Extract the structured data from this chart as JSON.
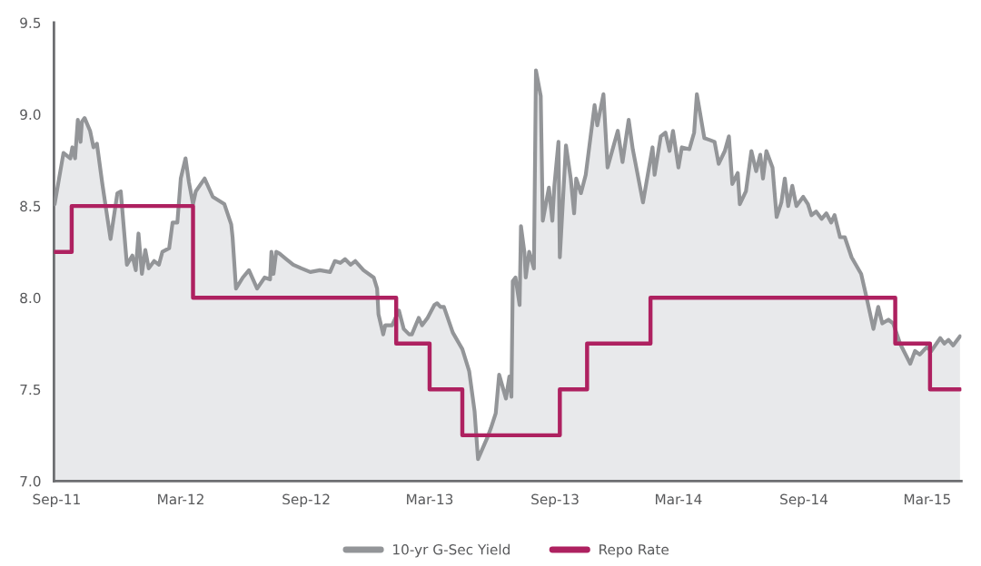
{
  "chart_data": {
    "type": "area",
    "xlim": [
      "2011-08-28",
      "2015-04-20"
    ],
    "xticks": [
      {
        "value": "2011-09-01",
        "label": "Sep-11"
      },
      {
        "value": "2012-03-01",
        "label": "Mar-12"
      },
      {
        "value": "2012-09-01",
        "label": "Sep-12"
      },
      {
        "value": "2013-03-01",
        "label": "Mar-13"
      },
      {
        "value": "2013-09-01",
        "label": "Sep-13"
      },
      {
        "value": "2014-03-01",
        "label": "Mar-14"
      },
      {
        "value": "2014-09-01",
        "label": "Sep-14"
      },
      {
        "value": "2015-03-01",
        "label": "Mar-15"
      }
    ],
    "ylim": [
      7.0,
      9.5
    ],
    "yticks": [
      {
        "value": 7.0,
        "label": "7.0"
      },
      {
        "value": 7.5,
        "label": "7.5"
      },
      {
        "value": 8.0,
        "label": "8.0"
      },
      {
        "value": 8.5,
        "label": "8.5"
      },
      {
        "value": 9.0,
        "label": "9.0"
      },
      {
        "value": 9.5,
        "label": "9.5"
      }
    ],
    "grid": false,
    "legend": "bottom",
    "marker": "none",
    "series": [
      {
        "name": "10-yr G-Sec Yield",
        "color": "#939598",
        "x": [
          "2011-08-29",
          "2011-09-11",
          "2011-09-21",
          "2011-09-24",
          "2011-09-28",
          "2011-10-02",
          "2011-10-06",
          "2011-10-08",
          "2011-10-12",
          "2011-10-20",
          "2011-10-25",
          "2011-10-30",
          "2011-11-07",
          "2011-11-19",
          "2011-11-29",
          "2011-12-04",
          "2011-12-13",
          "2011-12-21",
          "2011-12-26",
          "2011-12-30",
          "2012-01-04",
          "2012-01-09",
          "2012-01-14",
          "2012-01-22",
          "2012-01-29",
          "2012-02-03",
          "2012-02-13",
          "2012-02-18",
          "2012-02-25",
          "2012-03-01",
          "2012-03-08",
          "2012-03-13",
          "2012-03-19",
          "2012-03-23",
          "2012-04-05",
          "2012-04-17",
          "2012-05-04",
          "2012-05-14",
          "2012-05-16",
          "2012-05-21",
          "2012-05-31",
          "2012-06-09",
          "2012-06-21",
          "2012-07-02",
          "2012-07-10",
          "2012-07-12",
          "2012-07-15",
          "2012-07-19",
          "2012-07-24",
          "2012-08-03",
          "2012-08-13",
          "2012-08-25",
          "2012-09-07",
          "2012-09-21",
          "2012-10-06",
          "2012-10-13",
          "2012-10-21",
          "2012-10-28",
          "2012-11-05",
          "2012-11-12",
          "2012-11-24",
          "2012-12-09",
          "2012-12-14",
          "2012-12-16",
          "2012-12-23",
          "2012-12-26",
          "2013-01-05",
          "2013-01-15",
          "2013-01-22",
          "2013-01-30",
          "2013-02-03",
          "2013-02-13",
          "2013-02-18",
          "2013-02-26",
          "2013-03-08",
          "2013-03-12",
          "2013-03-17",
          "2013-03-22",
          "2013-04-04",
          "2013-04-18",
          "2013-04-28",
          "2013-05-06",
          "2013-05-11",
          "2013-05-25",
          "2013-05-30",
          "2013-06-06",
          "2013-06-11",
          "2013-06-21",
          "2013-06-26",
          "2013-06-29",
          "2013-07-01",
          "2013-07-05",
          "2013-07-11",
          "2013-07-13",
          "2013-07-18",
          "2013-07-20",
          "2013-07-25",
          "2013-08-01",
          "2013-08-04",
          "2013-08-11",
          "2013-08-14",
          "2013-08-23",
          "2013-08-28",
          "2013-08-31",
          "2013-09-06",
          "2013-09-08",
          "2013-09-17",
          "2013-09-24",
          "2013-09-29",
          "2013-10-02",
          "2013-10-09",
          "2013-10-16",
          "2013-10-29",
          "2013-11-02",
          "2013-11-11",
          "2013-11-17",
          "2013-12-02",
          "2013-12-09",
          "2013-12-18",
          "2013-12-24",
          "2014-01-08",
          "2014-01-22",
          "2014-01-25",
          "2014-02-03",
          "2014-02-10",
          "2014-02-16",
          "2014-02-21",
          "2014-03-01",
          "2014-03-06",
          "2014-03-17",
          "2014-03-24",
          "2014-03-28",
          "2014-04-08",
          "2014-04-16",
          "2014-04-23",
          "2014-04-29",
          "2014-05-08",
          "2014-05-14",
          "2014-05-19",
          "2014-05-27",
          "2014-05-30",
          "2014-06-08",
          "2014-06-16",
          "2014-06-23",
          "2014-06-29",
          "2014-07-03",
          "2014-07-08",
          "2014-07-17",
          "2014-07-23",
          "2014-07-30",
          "2014-08-04",
          "2014-08-09",
          "2014-08-15",
          "2014-08-21",
          "2014-08-31",
          "2014-09-07",
          "2014-09-12",
          "2014-09-19",
          "2014-09-27",
          "2014-10-04",
          "2014-10-11",
          "2014-10-16",
          "2014-10-24",
          "2014-10-31",
          "2014-11-10",
          "2014-11-24",
          "2014-12-02",
          "2014-12-12",
          "2014-12-19",
          "2014-12-25",
          "2015-01-03",
          "2015-01-10",
          "2015-01-20",
          "2015-02-04",
          "2015-02-11",
          "2015-02-18",
          "2015-02-28",
          "2015-03-07",
          "2015-03-20",
          "2015-03-26",
          "2015-04-01",
          "2015-04-08",
          "2015-04-18"
        ],
        "values": [
          8.51,
          8.79,
          8.76,
          8.82,
          8.76,
          8.97,
          8.85,
          8.96,
          8.98,
          8.91,
          8.82,
          8.84,
          8.62,
          8.32,
          8.57,
          8.58,
          8.18,
          8.23,
          8.15,
          8.35,
          8.13,
          8.26,
          8.16,
          8.2,
          8.18,
          8.25,
          8.27,
          8.41,
          8.41,
          8.65,
          8.76,
          8.63,
          8.51,
          8.58,
          8.65,
          8.55,
          8.51,
          8.4,
          8.33,
          8.05,
          8.11,
          8.15,
          8.05,
          8.11,
          8.1,
          8.25,
          8.13,
          8.25,
          8.24,
          8.21,
          8.18,
          8.16,
          8.14,
          8.15,
          8.14,
          8.2,
          8.19,
          8.21,
          8.18,
          8.2,
          8.15,
          8.11,
          8.05,
          7.91,
          7.8,
          7.85,
          7.85,
          7.93,
          7.83,
          7.8,
          7.8,
          7.89,
          7.85,
          7.89,
          7.96,
          7.97,
          7.95,
          7.95,
          7.81,
          7.72,
          7.6,
          7.38,
          7.12,
          7.24,
          7.29,
          7.37,
          7.58,
          7.45,
          7.57,
          7.46,
          8.09,
          8.11,
          7.96,
          8.39,
          8.25,
          8.11,
          8.25,
          8.16,
          9.24,
          9.1,
          8.42,
          8.6,
          8.42,
          8.61,
          8.85,
          8.22,
          8.83,
          8.65,
          8.46,
          8.65,
          8.57,
          8.67,
          9.05,
          8.94,
          9.11,
          8.71,
          8.91,
          8.74,
          8.97,
          8.81,
          8.52,
          8.82,
          8.67,
          8.88,
          8.9,
          8.8,
          8.91,
          8.71,
          8.82,
          8.81,
          8.9,
          9.11,
          8.87,
          8.86,
          8.85,
          8.73,
          8.8,
          8.88,
          8.62,
          8.68,
          8.51,
          8.58,
          8.8,
          8.69,
          8.78,
          8.65,
          8.8,
          8.71,
          8.44,
          8.52,
          8.65,
          8.5,
          8.61,
          8.5,
          8.55,
          8.51,
          8.45,
          8.47,
          8.43,
          8.46,
          8.41,
          8.45,
          8.33,
          8.33,
          8.22,
          8.13,
          8.0,
          7.83,
          7.95,
          7.86,
          7.88,
          7.86,
          7.75,
          7.64,
          7.71,
          7.69,
          7.73,
          7.71,
          7.78,
          7.75,
          7.77,
          7.74,
          7.79
        ]
      },
      {
        "name": "Repo Rate",
        "type": "step",
        "color": "#ae2160",
        "x": [
          "2011-08-29",
          "2011-09-23",
          "2012-03-19",
          "2013-01-11",
          "2013-03-01",
          "2013-04-18",
          "2013-09-08",
          "2013-10-18",
          "2014-01-19",
          "2015-01-13",
          "2015-03-05",
          "2015-04-18"
        ],
        "values": [
          8.25,
          8.5,
          8.0,
          7.75,
          7.5,
          7.25,
          7.5,
          7.75,
          8.0,
          7.75,
          7.5,
          7.5
        ]
      }
    ]
  }
}
